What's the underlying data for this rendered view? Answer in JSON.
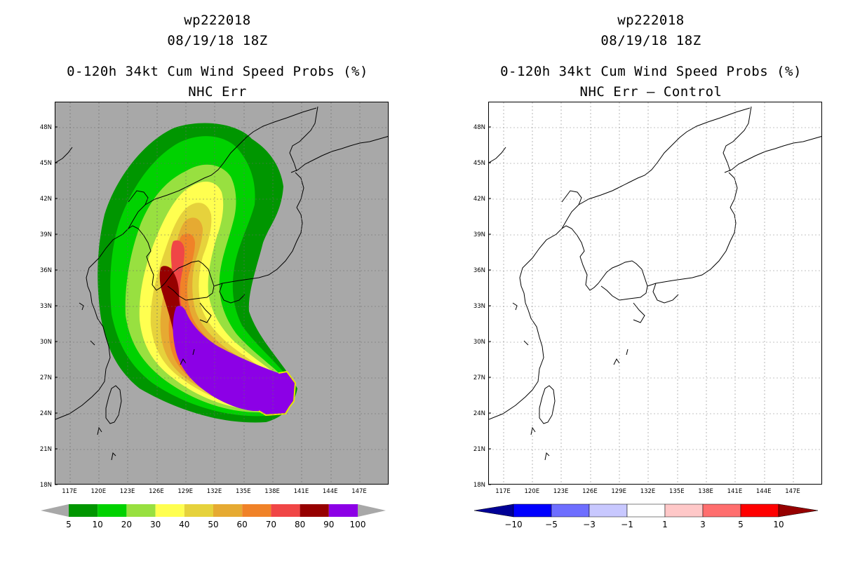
{
  "left_panel": {
    "title_line1": "wp222018",
    "title_line2": "08/19/18 18Z",
    "title_line3": "0-120h 34kt Cum Wind Speed Probs (%)",
    "title_line4": "NHC Err",
    "colorbar_labels": [
      "5",
      "10",
      "20",
      "30",
      "40",
      "50",
      "60",
      "70",
      "80",
      "90",
      "100"
    ],
    "colorbar_colors": [
      "#009600",
      "#00d200",
      "#98e040",
      "#ffff50",
      "#e6d23c",
      "#e6aa32",
      "#f08228",
      "#f04646",
      "#960000",
      "#8c00e6"
    ]
  },
  "right_panel": {
    "title_line1": "wp222018",
    "title_line2": "08/19/18 18Z",
    "title_line3": "0-120h 34kt Cum Wind Speed Probs (%)",
    "title_line4": "NHC Err – Control",
    "colorbar_labels": [
      "-10",
      "-5",
      "-3",
      "-1",
      "1",
      "3",
      "5",
      "10"
    ],
    "colorbar_colors": [
      "#000096",
      "#0000ff",
      "#6e6eff",
      "#c8c8ff",
      "#ffffff",
      "#ffc8c8",
      "#ff6e6e",
      "#ff0000",
      "#960000"
    ]
  },
  "lat_labels": [
    "48N",
    "45N",
    "42N",
    "39N",
    "36N",
    "33N",
    "30N",
    "27N",
    "24N",
    "21N",
    "18N"
  ],
  "lon_labels": [
    "117E",
    "120E",
    "123E",
    "126E",
    "129E",
    "132E",
    "135E",
    "138E",
    "141E",
    "144E",
    "147E"
  ],
  "colors": {
    "left_background": "#a8a8a8",
    "right_background": "#ffffff"
  }
}
